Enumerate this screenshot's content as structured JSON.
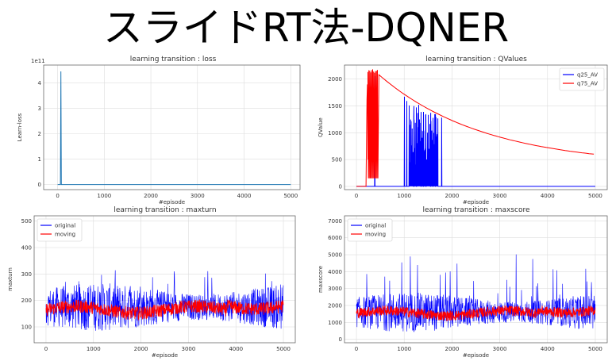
{
  "page": {
    "title": "スライドRT法-DQNER"
  },
  "chart_data": [
    {
      "type": "line",
      "title": "learning transition : loss",
      "xlabel": "#episode",
      "ylabel": "Learn-loss",
      "y_scale_label": "1e11",
      "xlim": [
        -300,
        5200
      ],
      "ylim": [
        -0.2,
        4.7
      ],
      "xticks": [
        0,
        1000,
        2000,
        3000,
        4000,
        5000
      ],
      "yticks": [
        0,
        1,
        2,
        3,
        4
      ],
      "grid": true,
      "series": [
        {
          "name": "",
          "color": "#1f77b4",
          "x": [
            0,
            60,
            70,
            80,
            90,
            5000
          ],
          "y": [
            0,
            0,
            4.45,
            0,
            0,
            0
          ]
        }
      ]
    },
    {
      "type": "line",
      "title": "learning transition : QValues",
      "xlabel": "#episode",
      "ylabel": "QValue",
      "xlim": [
        -250,
        5250
      ],
      "ylim": [
        -60,
        2260
      ],
      "xticks": [
        0,
        1000,
        2000,
        3000,
        4000,
        5000
      ],
      "yticks": [
        0,
        500,
        1000,
        1500,
        2000
      ],
      "grid": true,
      "legend": "top-right",
      "series": [
        {
          "name": "q25_AV",
          "color": "#0000ff",
          "kind": "q25"
        },
        {
          "name": "q75_AV",
          "color": "#ff0000",
          "kind": "q75"
        }
      ]
    },
    {
      "type": "line",
      "title": "learning transition : maxturn",
      "xlabel": "#episode",
      "ylabel": "maxturn",
      "xlim": [
        -250,
        5250
      ],
      "ylim": [
        40,
        520
      ],
      "xticks": [
        0,
        1000,
        2000,
        3000,
        4000,
        5000
      ],
      "yticks": [
        100,
        200,
        300,
        400,
        500
      ],
      "grid": true,
      "legend": "top-left",
      "series": [
        {
          "name": "original",
          "color": "#0000ff",
          "kind": "noisy",
          "base": 175,
          "spread": 70,
          "spikes": 320
        },
        {
          "name": "moving",
          "color": "#ff0000",
          "kind": "smooth",
          "base": 165,
          "spread": 25
        }
      ]
    },
    {
      "type": "line",
      "title": "learning transition : maxscore",
      "xlabel": "#episode",
      "ylabel": "maxscore",
      "xlim": [
        -250,
        5250
      ],
      "ylim": [
        -200,
        7300
      ],
      "xticks": [
        0,
        1000,
        2000,
        3000,
        4000,
        5000
      ],
      "yticks": [
        0,
        1000,
        2000,
        3000,
        4000,
        5000,
        6000,
        7000
      ],
      "grid": true,
      "legend": "top-left",
      "series": [
        {
          "name": "original",
          "color": "#0000ff",
          "kind": "noisy",
          "base": 1600,
          "spread": 900,
          "spikes": 5200
        },
        {
          "name": "moving",
          "color": "#ff0000",
          "kind": "smooth",
          "base": 1550,
          "spread": 300
        }
      ]
    }
  ]
}
